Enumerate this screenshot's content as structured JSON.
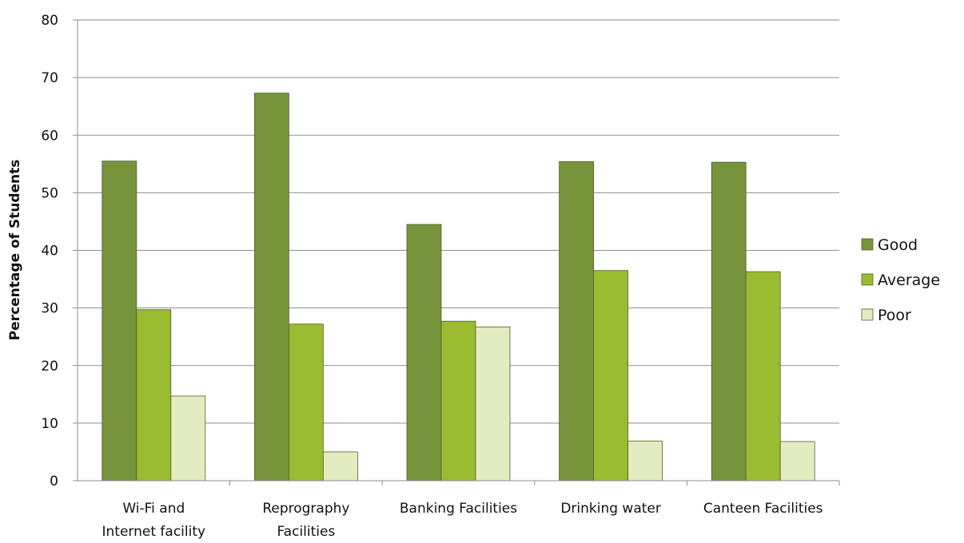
{
  "chart_data": {
    "type": "bar",
    "title": "",
    "xlabel": "",
    "ylabel": "Percentage of Students",
    "ylim": [
      0,
      80
    ],
    "yticks": [
      0,
      10,
      20,
      30,
      40,
      50,
      60,
      70,
      80
    ],
    "grid": true,
    "legend_position": "right",
    "categories": [
      [
        "Wi-Fi and",
        "Internet facility"
      ],
      [
        "Reprography",
        "Facilities"
      ],
      [
        "Banking Facilities"
      ],
      [
        "Drinking water"
      ],
      [
        "Canteen Facilities"
      ]
    ],
    "series": [
      {
        "name": "Good",
        "color": "#77933c",
        "values": [
          55.5,
          67.3,
          44.5,
          55.4,
          55.3
        ]
      },
      {
        "name": "Average",
        "color": "#9bbb30",
        "values": [
          29.7,
          27.2,
          27.7,
          36.5,
          36.3
        ]
      },
      {
        "name": "Poor",
        "color": "#e3ecc0",
        "values": [
          14.7,
          5.0,
          26.7,
          6.9,
          6.8
        ]
      }
    ]
  }
}
